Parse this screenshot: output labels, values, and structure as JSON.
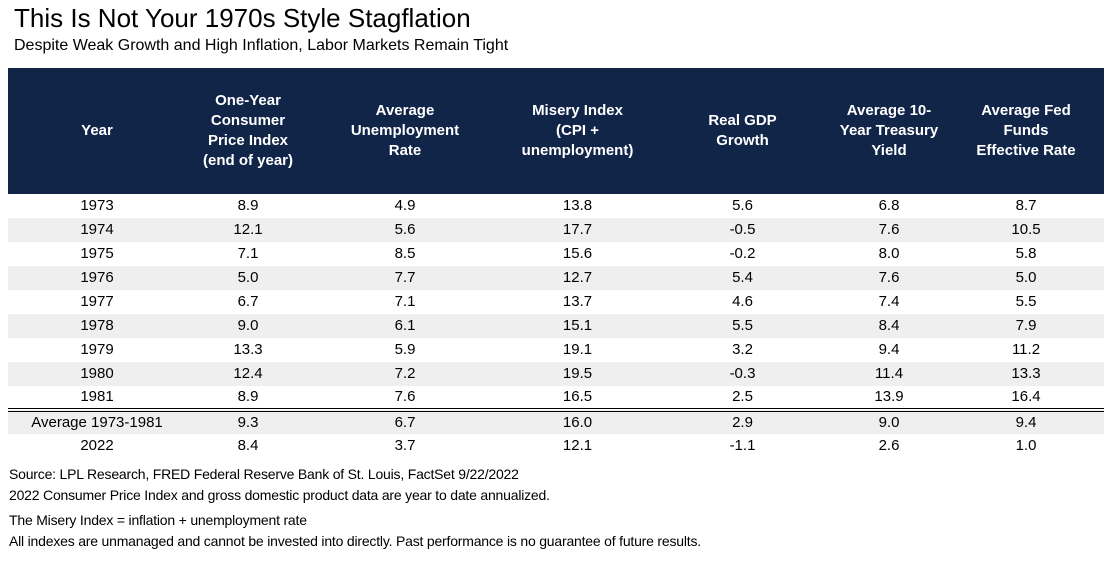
{
  "page": {
    "title": "This Is Not Your 1970s Style Stagflation",
    "subtitle": "Despite Weak Growth and High Inflation, Labor Markets Remain Tight"
  },
  "colors": {
    "header_bg": "#112549",
    "row_alt": "#efefef",
    "text": "#000000"
  },
  "chart_data": {
    "type": "table",
    "title": "This Is Not Your 1970s Style Stagflation",
    "subtitle": "Despite Weak Growth and High Inflation, Labor Markets Remain Tight",
    "columns": [
      "Year",
      "One-Year\nConsumer\nPrice Index\n(end of year)",
      "Average\nUnemployment\nRate",
      "Misery Index\n(CPI +\nunemployment)",
      "Real GDP\nGrowth",
      "Average 10-\nYear Treasury\nYield",
      "Average Fed\nFunds\nEffective Rate"
    ],
    "rows": [
      {
        "label": "1973",
        "values": [
          "8.9",
          "4.9",
          "13.8",
          "5.6",
          "6.8",
          "8.7"
        ],
        "summary": false
      },
      {
        "label": "1974",
        "values": [
          "12.1",
          "5.6",
          "17.7",
          "-0.5",
          "7.6",
          "10.5"
        ],
        "summary": false
      },
      {
        "label": "1975",
        "values": [
          "7.1",
          "8.5",
          "15.6",
          "-0.2",
          "8.0",
          "5.8"
        ],
        "summary": false
      },
      {
        "label": "1976",
        "values": [
          "5.0",
          "7.7",
          "12.7",
          "5.4",
          "7.6",
          "5.0"
        ],
        "summary": false
      },
      {
        "label": "1977",
        "values": [
          "6.7",
          "7.1",
          "13.7",
          "4.6",
          "7.4",
          "5.5"
        ],
        "summary": false
      },
      {
        "label": "1978",
        "values": [
          "9.0",
          "6.1",
          "15.1",
          "5.5",
          "8.4",
          "7.9"
        ],
        "summary": false
      },
      {
        "label": "1979",
        "values": [
          "13.3",
          "5.9",
          "19.1",
          "3.2",
          "9.4",
          "11.2"
        ],
        "summary": false
      },
      {
        "label": "1980",
        "values": [
          "12.4",
          "7.2",
          "19.5",
          "-0.3",
          "11.4",
          "13.3"
        ],
        "summary": false
      },
      {
        "label": "1981",
        "values": [
          "8.9",
          "7.6",
          "16.5",
          "2.5",
          "13.9",
          "16.4"
        ],
        "summary": false
      },
      {
        "label": "Average 1973-1981",
        "values": [
          "9.3",
          "6.7",
          "16.0",
          "2.9",
          "9.0",
          "9.4"
        ],
        "summary": true
      },
      {
        "label": "2022",
        "values": [
          "8.4",
          "3.7",
          "12.1",
          "-1.1",
          "2.6",
          "1.0"
        ],
        "summary": false
      }
    ],
    "notes": [
      "Source: LPL Research, FRED Federal Reserve Bank of St. Louis, FactSet 9/22/2022",
      "2022 Consumer Price Index and gross domestic product data are year to date annualized.",
      "The Misery Index = inflation + unemployment rate",
      "All indexes are unmanaged and cannot be invested into directly. Past performance is no guarantee of future results."
    ]
  }
}
